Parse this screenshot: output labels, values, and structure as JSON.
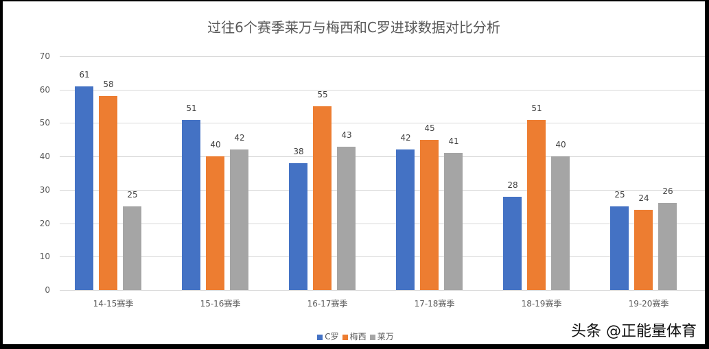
{
  "chart_data": {
    "type": "bar",
    "title": "过往6个赛季莱万与梅西和C罗进球数据对比分析",
    "xlabel": "",
    "ylabel": "",
    "ylim": [
      0,
      70
    ],
    "yticks": [
      0,
      10,
      20,
      30,
      40,
      50,
      60,
      70
    ],
    "grid": true,
    "legend_position": "bottom",
    "categories": [
      "14-15赛季",
      "15-16赛季",
      "16-17赛季",
      "17-18赛季",
      "18-19赛季",
      "19-20赛季"
    ],
    "series": [
      {
        "name": "C罗",
        "color": "#4472c4",
        "values": [
          61,
          51,
          38,
          42,
          28,
          25
        ]
      },
      {
        "name": "梅西",
        "color": "#ed7d31",
        "values": [
          58,
          40,
          55,
          45,
          51,
          24
        ]
      },
      {
        "name": "莱万",
        "color": "#a5a5a5",
        "values": [
          25,
          42,
          43,
          41,
          40,
          26
        ]
      }
    ]
  },
  "legend": [
    "C罗",
    "梅西",
    "莱万"
  ],
  "watermark": "头条 @正能量体育"
}
